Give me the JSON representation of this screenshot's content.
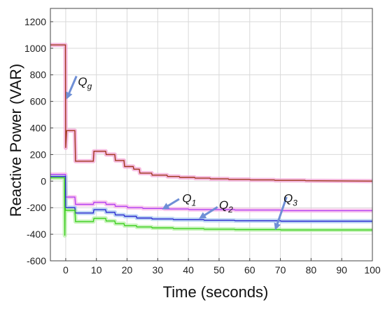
{
  "chart_data": {
    "type": "line",
    "title": "",
    "xlabel": "Time (seconds)",
    "ylabel": "Reactive Power (VAR)",
    "xlim": [
      -5,
      100
    ],
    "ylim": [
      -600,
      1300
    ],
    "x_ticks": [
      0,
      10,
      20,
      30,
      40,
      50,
      60,
      70,
      80,
      90,
      100
    ],
    "y_ticks": [
      -600,
      -400,
      -200,
      0,
      200,
      400,
      600,
      800,
      1000,
      1200
    ],
    "grid": true,
    "legend": "none",
    "series": [
      {
        "name": "Qg",
        "color": "#a0361c",
        "shade": "#f3a6d6",
        "points": [
          [
            -5,
            1025
          ],
          [
            -0.1,
            1025
          ],
          [
            0,
            250
          ],
          [
            0.3,
            380
          ],
          [
            3,
            380
          ],
          [
            3.2,
            150
          ],
          [
            9,
            150
          ],
          [
            9.2,
            225
          ],
          [
            13,
            225
          ],
          [
            13.2,
            200
          ],
          [
            16,
            200
          ],
          [
            16.2,
            155
          ],
          [
            19,
            155
          ],
          [
            19.2,
            110
          ],
          [
            22,
            110
          ],
          [
            22.2,
            90
          ],
          [
            24,
            90
          ],
          [
            24.2,
            60
          ],
          [
            28,
            60
          ],
          [
            28.2,
            45
          ],
          [
            33,
            45
          ],
          [
            33.2,
            35
          ],
          [
            37,
            35
          ],
          [
            37.2,
            28
          ],
          [
            42,
            28
          ],
          [
            42.2,
            22
          ],
          [
            47,
            22
          ],
          [
            47.2,
            17
          ],
          [
            53,
            17
          ],
          [
            53.2,
            13
          ],
          [
            60,
            13
          ],
          [
            60.2,
            9
          ],
          [
            68,
            9
          ],
          [
            68.2,
            6
          ],
          [
            78,
            6
          ],
          [
            78.2,
            3
          ],
          [
            100,
            0
          ]
        ]
      },
      {
        "name": "Q1",
        "color": "#b33ef2",
        "shade": "#f7b8e8",
        "points": [
          [
            -5,
            50
          ],
          [
            -0.1,
            50
          ],
          [
            0,
            -120
          ],
          [
            3,
            -120
          ],
          [
            3.2,
            -175
          ],
          [
            9,
            -175
          ],
          [
            9.2,
            -160
          ],
          [
            13,
            -160
          ],
          [
            13.2,
            -175
          ],
          [
            16,
            -175
          ],
          [
            16.2,
            -190
          ],
          [
            20,
            -190
          ],
          [
            20.2,
            -200
          ],
          [
            25,
            -200
          ],
          [
            25.2,
            -206
          ],
          [
            32,
            -206
          ],
          [
            32.2,
            -210
          ],
          [
            40,
            -210
          ],
          [
            40.2,
            -214
          ],
          [
            55,
            -214
          ],
          [
            55.2,
            -218
          ],
          [
            70,
            -218
          ],
          [
            70.2,
            -222
          ],
          [
            100,
            -222
          ]
        ]
      },
      {
        "name": "Q2",
        "color": "#2a2ad0",
        "shade": "#a8c8f0",
        "points": [
          [
            -5,
            35
          ],
          [
            -0.1,
            35
          ],
          [
            0,
            -200
          ],
          [
            3,
            -200
          ],
          [
            3.2,
            -240
          ],
          [
            9,
            -240
          ],
          [
            9.2,
            -215
          ],
          [
            13,
            -215
          ],
          [
            13.2,
            -235
          ],
          [
            16,
            -235
          ],
          [
            16.2,
            -255
          ],
          [
            19,
            -255
          ],
          [
            19.2,
            -265
          ],
          [
            23,
            -265
          ],
          [
            23.2,
            -278
          ],
          [
            28,
            -278
          ],
          [
            28.2,
            -285
          ],
          [
            35,
            -285
          ],
          [
            35.2,
            -290
          ],
          [
            45,
            -290
          ],
          [
            45.2,
            -295
          ],
          [
            55,
            -295
          ],
          [
            55.2,
            -298
          ],
          [
            70,
            -298
          ],
          [
            70.2,
            -302
          ],
          [
            100,
            -302
          ]
        ]
      },
      {
        "name": "Q3",
        "color": "#3ccf1e",
        "shade": "#b8f0a8",
        "points": [
          [
            -5,
            25
          ],
          [
            -0.4,
            25
          ],
          [
            -0.3,
            -410
          ],
          [
            -0.2,
            -200
          ],
          [
            0,
            -220
          ],
          [
            3,
            -220
          ],
          [
            3.2,
            -305
          ],
          [
            9,
            -305
          ],
          [
            9.2,
            -280
          ],
          [
            13,
            -280
          ],
          [
            13.2,
            -300
          ],
          [
            16,
            -300
          ],
          [
            16.2,
            -320
          ],
          [
            19,
            -320
          ],
          [
            19.2,
            -335
          ],
          [
            23,
            -335
          ],
          [
            23.2,
            -345
          ],
          [
            28,
            -345
          ],
          [
            28.2,
            -352
          ],
          [
            35,
            -352
          ],
          [
            35.2,
            -358
          ],
          [
            45,
            -358
          ],
          [
            45.2,
            -362
          ],
          [
            55,
            -362
          ],
          [
            55.2,
            -365
          ],
          [
            70,
            -365
          ],
          [
            70.2,
            -368
          ],
          [
            100,
            -368
          ]
        ]
      }
    ],
    "annotations": [
      {
        "id": "qg",
        "letter": "Q",
        "sub": "g",
        "text_at": [
          4,
          720
        ],
        "arrow_from": [
          3.5,
          790
        ],
        "arrow_to": [
          0.5,
          630
        ]
      },
      {
        "id": "q1",
        "letter": "Q",
        "sub": "1",
        "text_at": [
          38,
          -160
        ],
        "arrow_from": [
          37,
          -135
        ],
        "arrow_to": [
          32,
          -205
        ]
      },
      {
        "id": "q2",
        "letter": "Q",
        "sub": "2",
        "text_at": [
          50,
          -210
        ],
        "arrow_from": [
          49.5,
          -195
        ],
        "arrow_to": [
          44,
          -275
        ]
      },
      {
        "id": "q3",
        "letter": "Q",
        "sub": "3",
        "text_at": [
          71,
          -160
        ],
        "arrow_from": [
          72,
          -120
        ],
        "arrow_to": [
          68.5,
          -355
        ]
      }
    ]
  },
  "colors": {
    "background": "#ffffff",
    "grid": "#d9d9d9",
    "axis": "#444444",
    "arrow": "#6f8fd6"
  }
}
